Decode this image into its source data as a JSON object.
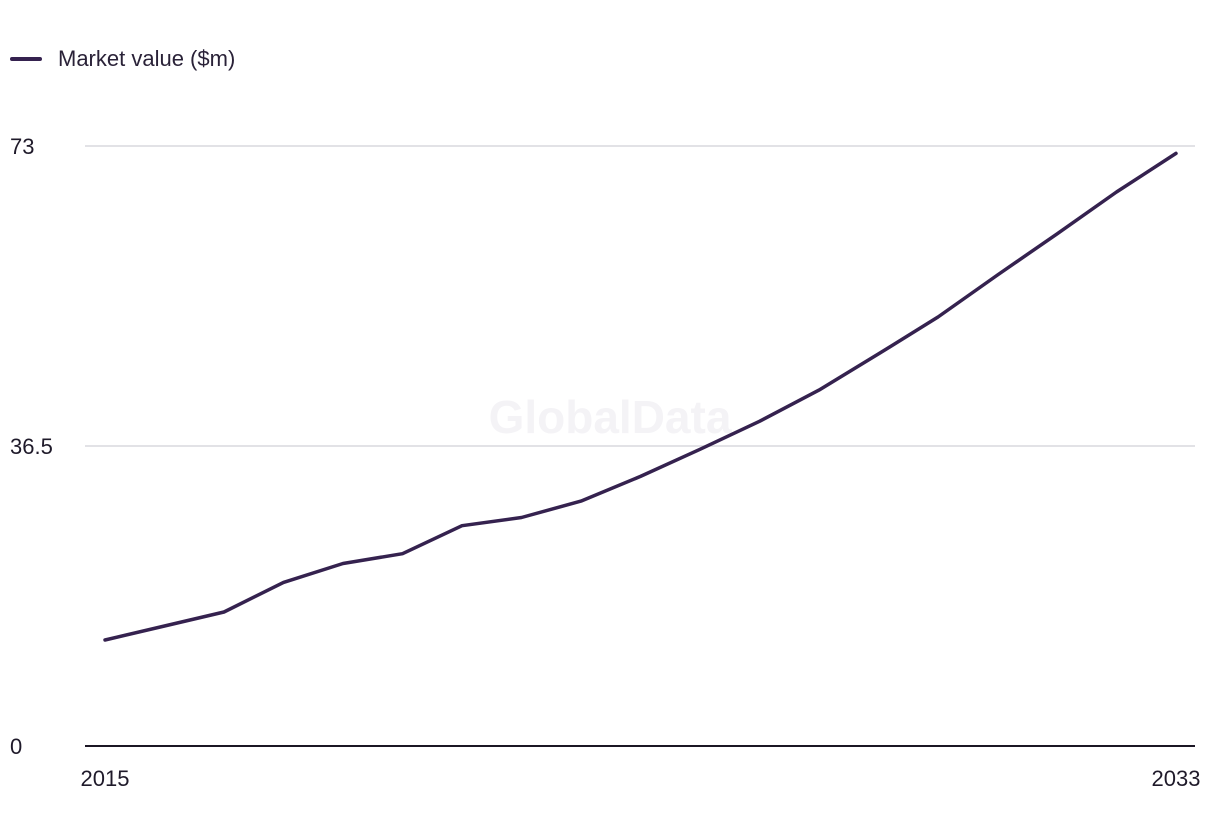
{
  "legend": {
    "label": "Market value ($m)"
  },
  "watermark": "GlobalData",
  "colors": {
    "series": "#35224f",
    "grid": "#d9d9dd",
    "axis": "#1b1624"
  },
  "chart_data": {
    "type": "line",
    "title": "",
    "xlabel": "",
    "ylabel": "",
    "ylim": [
      0,
      73
    ],
    "yticks": [
      0,
      36.5,
      73
    ],
    "ytick_labels": [
      "0",
      "36.5",
      "73"
    ],
    "xlim": [
      2015,
      2033
    ],
    "xtick_labels": [
      "2015",
      "2033"
    ],
    "grid": true,
    "legend_position": "top-left",
    "x": [
      2015,
      2016,
      2017,
      2018,
      2019,
      2020,
      2021,
      2022,
      2023,
      2024,
      2025,
      2026,
      2027,
      2028,
      2029,
      2030,
      2031,
      2032,
      2033
    ],
    "series": [
      {
        "name": "Market value ($m)",
        "values": [
          12.9,
          14.6,
          16.3,
          19.9,
          22.2,
          23.4,
          26.8,
          27.8,
          29.8,
          32.8,
          36.1,
          39.5,
          43.3,
          47.7,
          52.2,
          57.3,
          62.3,
          67.4,
          72.1
        ]
      }
    ]
  }
}
